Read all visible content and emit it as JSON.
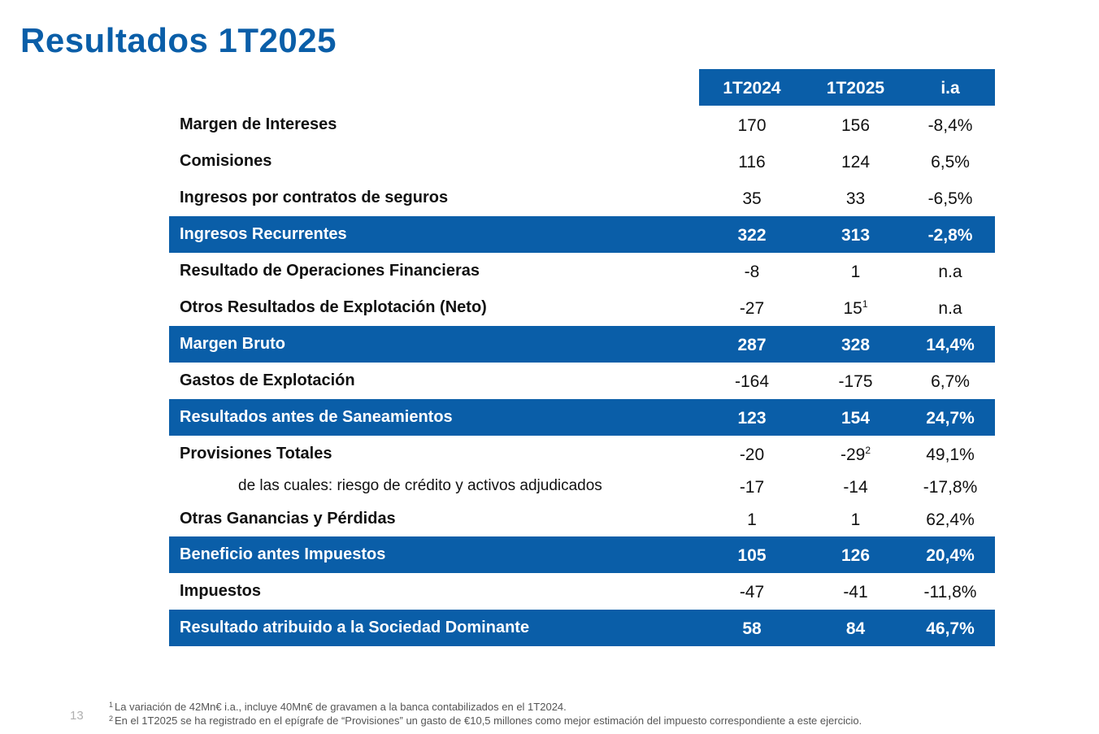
{
  "title": "Resultados 1T2025",
  "columns": [
    "1T2024",
    "1T2025",
    "i.a"
  ],
  "rows": [
    {
      "label": "Margen de Intereses",
      "v1": "170",
      "v2": "156",
      "v2_sup": "",
      "ia": "-8,4%",
      "style": "normal"
    },
    {
      "label": "Comisiones",
      "v1": "116",
      "v2": "124",
      "v2_sup": "",
      "ia": "6,5%",
      "style": "normal"
    },
    {
      "label": "Ingresos por contratos de seguros",
      "v1": "35",
      "v2": "33",
      "v2_sup": "",
      "ia": "-6,5%",
      "style": "normal"
    },
    {
      "label": "Ingresos Recurrentes",
      "v1": "322",
      "v2": "313",
      "v2_sup": "",
      "ia": "-2,8%",
      "style": "highlight"
    },
    {
      "label": "Resultado de Operaciones Financieras",
      "v1": "-8",
      "v2": "1",
      "v2_sup": "",
      "ia": "n.a",
      "style": "normal"
    },
    {
      "label": "Otros Resultados de Explotación (Neto)",
      "v1": "-27",
      "v2": "15",
      "v2_sup": "1",
      "ia": "n.a",
      "style": "normal"
    },
    {
      "label": "Margen Bruto",
      "v1": "287",
      "v2": "328",
      "v2_sup": "",
      "ia": "14,4%",
      "style": "highlight"
    },
    {
      "label": "Gastos de Explotación",
      "v1": "-164",
      "v2": "-175",
      "v2_sup": "",
      "ia": "6,7%",
      "style": "normal"
    },
    {
      "label": "Resultados antes de Saneamientos",
      "v1": "123",
      "v2": "154",
      "v2_sup": "",
      "ia": "24,7%",
      "style": "highlight"
    },
    {
      "label": "Provisiones Totales",
      "v1": "-20",
      "v2": "-29",
      "v2_sup": "2",
      "ia": "49,1%",
      "style": "normal"
    },
    {
      "label": "de las cuales: riesgo de crédito y activos adjudicados",
      "v1": "-17",
      "v2": "-14",
      "v2_sup": "",
      "ia": "-17,8%",
      "style": "sub"
    },
    {
      "label": "Otras Ganancias y Pérdidas",
      "v1": "1",
      "v2": "1",
      "v2_sup": "",
      "ia": "62,4%",
      "style": "normal"
    },
    {
      "label": "Beneficio antes Impuestos",
      "v1": "105",
      "v2": "126",
      "v2_sup": "",
      "ia": "20,4%",
      "style": "highlight"
    },
    {
      "label": "Impuestos",
      "v1": "-47",
      "v2": "-41",
      "v2_sup": "",
      "ia": "-11,8%",
      "style": "normal"
    },
    {
      "label": "Resultado atribuido a la Sociedad Dominante",
      "v1": "58",
      "v2": "84",
      "v2_sup": "",
      "ia": "46,7%",
      "style": "highlight"
    }
  ],
  "page_number": "13",
  "footnotes": [
    {
      "mark": "1",
      "text": "La variación de 42Mn€ i.a., incluye 40Mn€ de gravamen a la banca contabilizados en el 1T2024."
    },
    {
      "mark": "2",
      "text": "En el 1T2025 se ha registrado en el epígrafe de “Provisiones” un gasto de €10,5 millones como mejor estimación del impuesto correspondiente a este ejercicio."
    }
  ],
  "colors": {
    "brand_blue": "#0a5ea8"
  }
}
